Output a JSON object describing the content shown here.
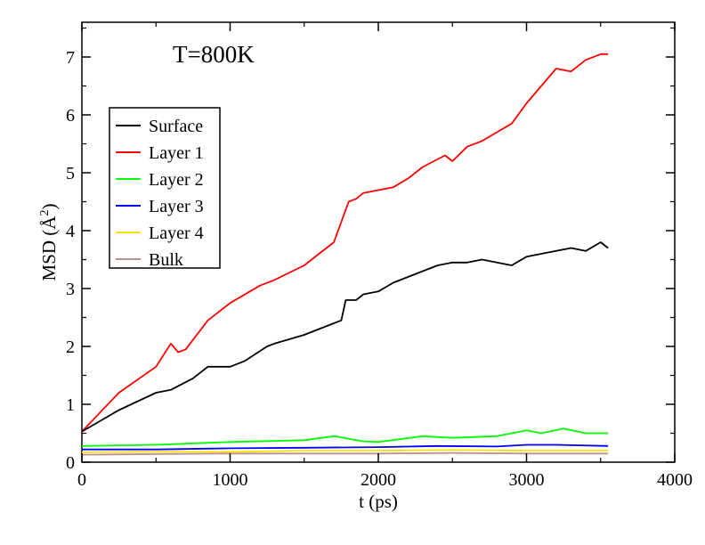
{
  "chart_data": {
    "type": "line",
    "title": "T=800K",
    "xlabel": "t (ps)",
    "ylabel": "MSD (Å²)",
    "ylabel_base": "MSD (",
    "ylabel_unit": "Å",
    "ylabel_sup": "2",
    "ylabel_close": ")",
    "xlim": [
      0,
      4000
    ],
    "ylim": [
      0,
      7.6
    ],
    "xticks": [
      0,
      1000,
      2000,
      3000,
      4000
    ],
    "yticks": [
      0,
      1,
      2,
      3,
      4,
      5,
      6,
      7
    ],
    "xtick_labels": [
      "0",
      "1000",
      "2000",
      "3000",
      "4000"
    ],
    "ytick_labels": [
      "0",
      "1",
      "2",
      "3",
      "4",
      "5",
      "6",
      "7"
    ],
    "grid": false,
    "legend_position": "upper-left",
    "series": [
      {
        "name": "Surface",
        "color": "#000000",
        "x": [
          0,
          250,
          500,
          600,
          750,
          850,
          1000,
          1100,
          1250,
          1300,
          1500,
          1600,
          1700,
          1750,
          1780,
          1850,
          1900,
          2000,
          2100,
          2200,
          2300,
          2400,
          2500,
          2600,
          2700,
          2800,
          2900,
          3000,
          3100,
          3200,
          3300,
          3400,
          3500,
          3550
        ],
        "y": [
          0.53,
          0.9,
          1.2,
          1.25,
          1.45,
          1.65,
          1.65,
          1.75,
          2.0,
          2.05,
          2.2,
          2.3,
          2.4,
          2.45,
          2.8,
          2.8,
          2.9,
          2.95,
          3.1,
          3.2,
          3.3,
          3.4,
          3.45,
          3.45,
          3.5,
          3.45,
          3.4,
          3.55,
          3.6,
          3.65,
          3.7,
          3.65,
          3.8,
          3.7
        ]
      },
      {
        "name": "Layer 1",
        "color": "#ff0000",
        "x": [
          0,
          250,
          500,
          600,
          650,
          700,
          850,
          1000,
          1200,
          1300,
          1500,
          1600,
          1700,
          1800,
          1850,
          1900,
          2000,
          2100,
          2200,
          2300,
          2450,
          2500,
          2600,
          2700,
          2800,
          2900,
          3000,
          3100,
          3200,
          3300,
          3400,
          3500,
          3550
        ],
        "y": [
          0.53,
          1.2,
          1.65,
          2.05,
          1.9,
          1.95,
          2.45,
          2.75,
          3.05,
          3.15,
          3.4,
          3.6,
          3.8,
          4.5,
          4.55,
          4.65,
          4.7,
          4.75,
          4.9,
          5.1,
          5.3,
          5.2,
          5.45,
          5.55,
          5.7,
          5.85,
          6.2,
          6.5,
          6.8,
          6.75,
          6.95,
          7.05,
          7.05
        ]
      },
      {
        "name": "Layer 2",
        "color": "#00ff00",
        "x": [
          0,
          500,
          1000,
          1500,
          1700,
          1900,
          2000,
          2300,
          2500,
          2800,
          3000,
          3100,
          3250,
          3400,
          3550
        ],
        "y": [
          0.28,
          0.3,
          0.35,
          0.38,
          0.45,
          0.36,
          0.35,
          0.45,
          0.42,
          0.45,
          0.55,
          0.5,
          0.58,
          0.5,
          0.5
        ]
      },
      {
        "name": "Layer 3",
        "color": "#0000ff",
        "x": [
          0,
          500,
          1000,
          1500,
          2000,
          2400,
          2800,
          3000,
          3200,
          3550
        ],
        "y": [
          0.22,
          0.22,
          0.24,
          0.25,
          0.26,
          0.28,
          0.27,
          0.3,
          0.3,
          0.28
        ]
      },
      {
        "name": "Layer 4",
        "color": "#ffe000",
        "x": [
          0,
          500,
          1000,
          1500,
          2000,
          2500,
          3000,
          3550
        ],
        "y": [
          0.17,
          0.18,
          0.18,
          0.2,
          0.2,
          0.21,
          0.2,
          0.2
        ]
      },
      {
        "name": "Bulk",
        "color": "#bc8f8f",
        "x": [
          0,
          500,
          1000,
          1500,
          2000,
          2500,
          3000,
          3550
        ],
        "y": [
          0.13,
          0.14,
          0.15,
          0.15,
          0.15,
          0.16,
          0.15,
          0.15
        ]
      }
    ]
  }
}
